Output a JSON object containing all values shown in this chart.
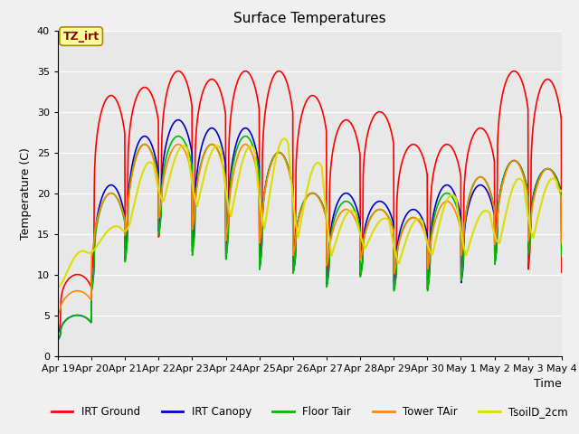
{
  "title": "Surface Temperatures",
  "xlabel": "Time",
  "ylabel": "Temperature (C)",
  "ylim": [
    0,
    40
  ],
  "xlim": [
    0,
    15
  ],
  "background_color": "#f0f0f0",
  "plot_bg_color": "#e8e8e8",
  "annotation_text": "TZ_irt",
  "annotation_fg": "#8b0000",
  "annotation_bg": "#ffff99",
  "annotation_edge": "#aa8800",
  "x_tick_labels": [
    "Apr 19",
    "Apr 20",
    "Apr 21",
    "Apr 22",
    "Apr 23",
    "Apr 24",
    "Apr 25",
    "Apr 26",
    "Apr 27",
    "Apr 28",
    "Apr 29",
    "Apr 30",
    "May 1",
    "May 2",
    "May 3",
    "May 4"
  ],
  "yticks": [
    0,
    5,
    10,
    15,
    20,
    25,
    30,
    35,
    40
  ],
  "series_order": [
    "IRT Ground",
    "IRT Canopy",
    "Floor Tair",
    "Tower TAir",
    "TsoilD_2cm"
  ],
  "series": {
    "IRT Ground": {
      "color": "#ff0000",
      "lw": 1.2
    },
    "IRT Canopy": {
      "color": "#0000cc",
      "lw": 1.2
    },
    "Floor Tair": {
      "color": "#00bb00",
      "lw": 1.2
    },
    "Tower TAir": {
      "color": "#ff8800",
      "lw": 1.2
    },
    "TsoilD_2cm": {
      "color": "#dddd00",
      "lw": 1.5
    }
  },
  "day_maxs_ground": [
    10,
    32,
    33,
    35,
    34,
    35,
    35,
    32,
    29,
    30,
    26,
    26,
    28,
    35,
    34
  ],
  "day_mins_ground": [
    1,
    5,
    9,
    10,
    9,
    8,
    6,
    7,
    5,
    8,
    5,
    4,
    5,
    9,
    5
  ],
  "day_maxs_canopy": [
    5,
    21,
    27,
    29,
    28,
    28,
    25,
    20,
    20,
    19,
    18,
    21,
    21,
    24,
    23
  ],
  "day_mins_canopy": [
    1,
    4,
    7,
    11,
    8,
    7,
    6,
    7,
    5,
    7,
    5,
    4,
    5,
    7,
    10
  ],
  "day_maxs_floor": [
    5,
    20,
    26,
    27,
    26,
    27,
    25,
    20,
    19,
    18,
    17,
    20,
    22,
    24,
    23
  ],
  "day_mins_floor": [
    1,
    4,
    7,
    11,
    8,
    7,
    6,
    7,
    5,
    7,
    5,
    4,
    5,
    7,
    9
  ],
  "day_maxs_tower": [
    8,
    20,
    26,
    26,
    26,
    26,
    25,
    20,
    18,
    18,
    17,
    19,
    22,
    24,
    23
  ],
  "day_mins_tower": [
    4,
    9,
    10,
    13,
    11,
    9,
    9,
    9,
    8,
    9,
    7,
    7,
    8,
    9,
    10
  ],
  "day_maxs_soil": [
    13,
    16,
    24,
    26,
    26,
    26,
    27,
    24,
    18,
    17,
    17,
    20,
    18,
    22,
    22
  ],
  "day_mins_soil": [
    7,
    12,
    12,
    15,
    14,
    12,
    9,
    9,
    9,
    11,
    8,
    8,
    9,
    9,
    10
  ],
  "peak_sharpness": 3.0,
  "soil_lag": 0.15
}
